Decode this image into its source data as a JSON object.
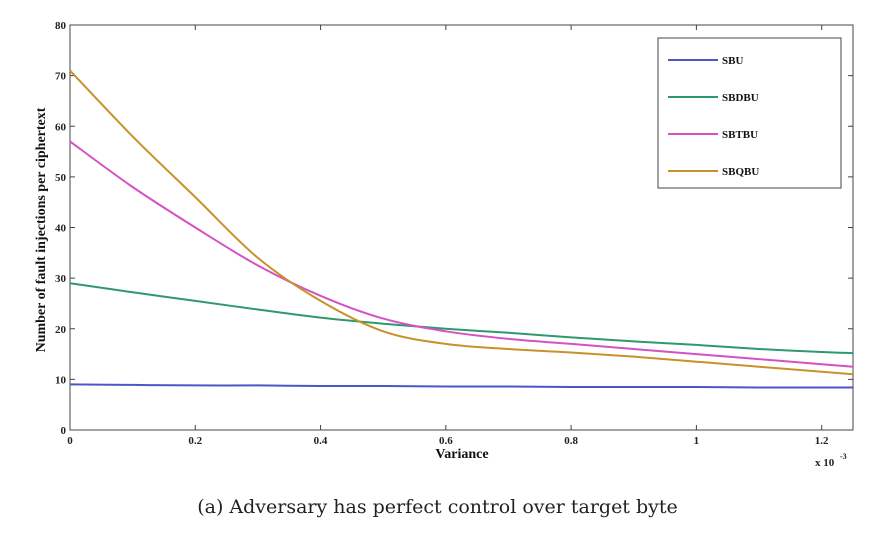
{
  "caption": "(a) Adversary has perfect control over target byte",
  "chart_data": {
    "type": "line",
    "xlabel": "Variance",
    "ylabel": "Number of fault injections per ciphertext",
    "x_multiplier": "x 10",
    "x_multiplier_exp": "-3",
    "xlim": [
      0,
      1.25
    ],
    "ylim": [
      0,
      80
    ],
    "xticks": [
      0,
      0.2,
      0.4,
      0.6,
      0.8,
      1,
      1.2
    ],
    "xtick_labels": [
      "0",
      "0.2",
      "0.4",
      "0.6",
      "0.8",
      "1",
      "1.2"
    ],
    "yticks": [
      0,
      10,
      20,
      30,
      40,
      50,
      60,
      70,
      80
    ],
    "ytick_labels": [
      "0",
      "10",
      "20",
      "30",
      "40",
      "50",
      "60",
      "70",
      "80"
    ],
    "grid": false,
    "legend_position": "top-right",
    "x": [
      0,
      0.1,
      0.2,
      0.3,
      0.4,
      0.5,
      0.6,
      0.7,
      0.8,
      0.9,
      1.0,
      1.1,
      1.2,
      1.25
    ],
    "series": [
      {
        "name": "SBU",
        "color": "#4a57c8",
        "values": [
          9,
          8.9,
          8.8,
          8.8,
          8.7,
          8.7,
          8.6,
          8.6,
          8.5,
          8.5,
          8.5,
          8.4,
          8.4,
          8.4
        ]
      },
      {
        "name": "SBDBU",
        "color": "#2e9a6c",
        "values": [
          29,
          27.2,
          25.5,
          23.8,
          22.2,
          21,
          20,
          19.2,
          18.3,
          17.5,
          16.8,
          16,
          15.4,
          15.2
        ]
      },
      {
        "name": "SBTBU",
        "color": "#d452c4",
        "values": [
          57,
          48,
          40,
          32.5,
          26.5,
          22,
          19.5,
          18,
          17,
          16,
          15,
          14,
          13,
          12.5
        ]
      },
      {
        "name": "SBQBU",
        "color": "#c8922a",
        "values": [
          71,
          58,
          46,
          34,
          25.5,
          19.5,
          17,
          16,
          15.3,
          14.5,
          13.5,
          12.5,
          11.5,
          11
        ]
      }
    ]
  }
}
